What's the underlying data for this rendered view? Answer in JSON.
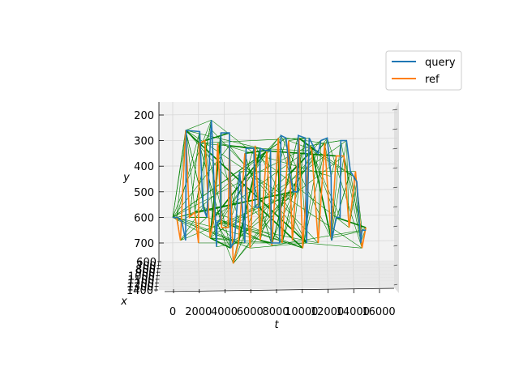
{
  "chart_data": {
    "type": "line",
    "projection": "3d",
    "title": "",
    "xlabel": "t",
    "ylabel": "y",
    "zlabel": "x",
    "xlim": [
      -1000,
      17000
    ],
    "ylim": [
      180,
      790
    ],
    "zlim": [
      550,
      1450
    ],
    "xticks": [
      0,
      2000,
      4000,
      6000,
      8000,
      10000,
      12000,
      14000,
      16000
    ],
    "xtick_labels": [
      "0",
      "2000",
      "4000",
      "6000",
      "8000",
      "10000",
      "12000",
      "14000",
      "16000"
    ],
    "yticks": [
      200,
      300,
      400,
      500,
      600,
      700
    ],
    "ytick_labels": [
      "200",
      "300",
      "400",
      "500",
      "600",
      "700"
    ],
    "zticks": [
      600,
      700,
      800,
      900,
      1000,
      1100,
      1200,
      1300,
      1400
    ],
    "ztick_labels": [
      "600",
      "700",
      "800",
      "900",
      "1000",
      "1100",
      "1200",
      "1300",
      "1400"
    ],
    "grid": true,
    "legend": {
      "position": "top-right",
      "entries": [
        "query",
        "ref"
      ]
    },
    "series": [
      {
        "name": "query",
        "color": "#1f77b4",
        "points": [
          [
            0,
            600
          ],
          [
            350,
            600
          ],
          [
            700,
            615
          ],
          [
            1000,
            690
          ],
          [
            1050,
            260
          ],
          [
            2100,
            265
          ],
          [
            2350,
            560
          ],
          [
            2650,
            600
          ],
          [
            3000,
            220
          ],
          [
            3050,
            260
          ],
          [
            3400,
            715
          ],
          [
            3450,
            620
          ],
          [
            3700,
            610
          ],
          [
            3750,
            270
          ],
          [
            4400,
            270
          ],
          [
            4500,
            720
          ],
          [
            4800,
            690
          ],
          [
            5200,
            420
          ],
          [
            5600,
            700
          ],
          [
            5700,
            330
          ],
          [
            6300,
            330
          ],
          [
            6400,
            560
          ],
          [
            6700,
            560
          ],
          [
            6800,
            330
          ],
          [
            7300,
            340
          ],
          [
            7600,
            335
          ],
          [
            7650,
            700
          ],
          [
            8300,
            700
          ],
          [
            8400,
            280
          ],
          [
            8800,
            290
          ],
          [
            9100,
            430
          ],
          [
            9350,
            500
          ],
          [
            9700,
            500
          ],
          [
            9750,
            280
          ],
          [
            10300,
            290
          ],
          [
            10400,
            700
          ],
          [
            10600,
            290
          ],
          [
            11100,
            340
          ],
          [
            11300,
            350
          ],
          [
            11500,
            300
          ],
          [
            12000,
            290
          ],
          [
            12300,
            440
          ],
          [
            12350,
            690
          ],
          [
            12700,
            600
          ],
          [
            13000,
            600
          ],
          [
            13050,
            300
          ],
          [
            13500,
            300
          ],
          [
            13800,
            420
          ],
          [
            14050,
            440
          ],
          [
            14300,
            460
          ],
          [
            14600,
            700
          ],
          [
            14700,
            650
          ],
          [
            15000,
            650
          ]
        ]
      },
      {
        "name": "ref",
        "color": "#ff7f0e",
        "points": [
          [
            0,
            600
          ],
          [
            300,
            600
          ],
          [
            600,
            690
          ],
          [
            1000,
            260
          ],
          [
            1300,
            600
          ],
          [
            1700,
            580
          ],
          [
            2000,
            700
          ],
          [
            2050,
            310
          ],
          [
            2500,
            300
          ],
          [
            2900,
            680
          ],
          [
            3200,
            600
          ],
          [
            3500,
            310
          ],
          [
            3800,
            640
          ],
          [
            4300,
            640
          ],
          [
            4400,
            320
          ],
          [
            4700,
            780
          ],
          [
            5100,
            700
          ],
          [
            5600,
            350
          ],
          [
            6000,
            720
          ],
          [
            6400,
            320
          ],
          [
            6800,
            690
          ],
          [
            7300,
            340
          ],
          [
            7700,
            710
          ],
          [
            8200,
            290
          ],
          [
            8500,
            700
          ],
          [
            9000,
            300
          ],
          [
            9300,
            690
          ],
          [
            9800,
            290
          ],
          [
            10100,
            720
          ],
          [
            10600,
            320
          ],
          [
            10800,
            340
          ],
          [
            11300,
            700
          ],
          [
            11800,
            310
          ],
          [
            12300,
            680
          ],
          [
            12700,
            360
          ],
          [
            13300,
            360
          ],
          [
            13700,
            640
          ],
          [
            14200,
            420
          ],
          [
            14700,
            720
          ],
          [
            15000,
            640
          ]
        ]
      }
    ],
    "alignment_links": {
      "color": "#008000",
      "count": 180,
      "description_note": ""
    }
  }
}
